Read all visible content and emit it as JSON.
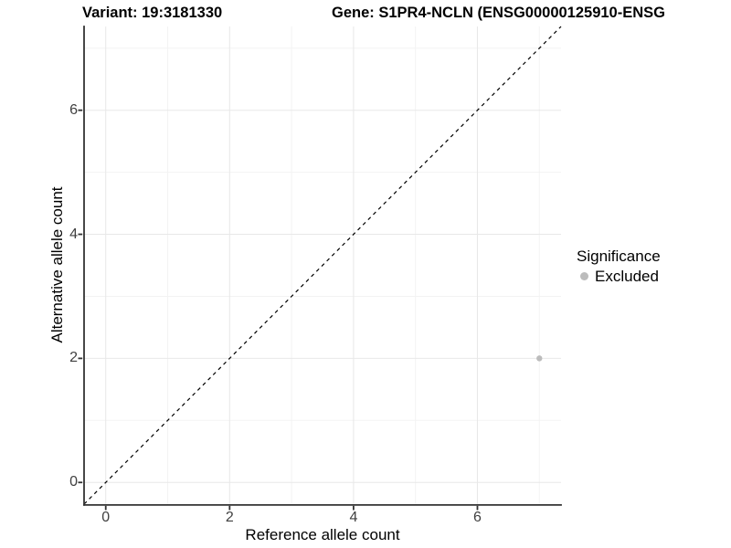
{
  "header": {
    "variant_title": "Variant: 19:3181330",
    "gene_title": "Gene: S1PR4-NCLN (ENSG00000125910-ENSG"
  },
  "axes": {
    "x": {
      "label": "Reference allele count",
      "tick_labels": [
        "0",
        "2",
        "4",
        "6"
      ]
    },
    "y": {
      "label": "Alternative allele count",
      "tick_labels": [
        "0",
        "2",
        "4",
        "6"
      ]
    }
  },
  "legend": {
    "title": "Significance",
    "items": [
      {
        "label": "Excluded",
        "color": "#bcbcbc"
      }
    ]
  },
  "colors": {
    "point": "#bcbcbc",
    "axis_line": "#333333",
    "tick_mark": "#333333",
    "tick_text": "#404040",
    "grid_major": "#e8e8e8",
    "grid_minor": "#f3f3f3",
    "reference_line": "#000000",
    "background": "#ffffff"
  },
  "chart_data": {
    "type": "scatter",
    "title_left": "Variant: 19:3181330",
    "title_right": "Gene: S1PR4-NCLN (ENSG00000125910-ENSG",
    "xlabel": "Reference allele count",
    "ylabel": "Alternative allele count",
    "xlim": [
      -0.35,
      7.35
    ],
    "ylim": [
      -0.35,
      7.35
    ],
    "x_ticks": [
      0,
      2,
      4,
      6
    ],
    "y_ticks": [
      0,
      2,
      4,
      6
    ],
    "x_minor_ticks": [
      1,
      3,
      5,
      7
    ],
    "y_minor_ticks": [
      1,
      3,
      5,
      7
    ],
    "grid": true,
    "legend_title": "Significance",
    "legend_position": "right",
    "series": [
      {
        "name": "Excluded",
        "color": "#bcbcbc",
        "points": [
          {
            "x": 7,
            "y": 2
          }
        ]
      }
    ],
    "reference_line": {
      "style": "dashed",
      "slope": 1,
      "intercept": 0
    }
  }
}
